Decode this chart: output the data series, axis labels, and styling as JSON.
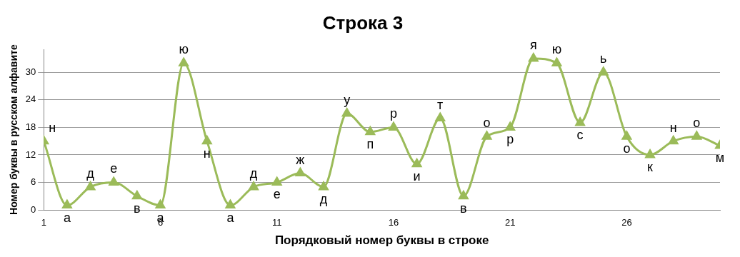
{
  "chart_data": {
    "type": "line",
    "title": "Строка 3",
    "xlabel": "Порядковый номер буквы в строке",
    "ylabel": "Номер буквы в русском алфавите",
    "x": [
      1,
      2,
      3,
      4,
      5,
      6,
      7,
      8,
      9,
      10,
      11,
      12,
      13,
      14,
      15,
      16,
      17,
      18,
      19,
      20,
      21,
      22,
      23,
      24,
      25,
      26,
      27,
      28,
      29,
      30
    ],
    "series": [
      {
        "color": "#9bbb59",
        "values": [
          15,
          1,
          5,
          6,
          3,
          1,
          32,
          15,
          1,
          5,
          6,
          8,
          5,
          21,
          17,
          18,
          10,
          20,
          3,
          16,
          18,
          33,
          32,
          19,
          30,
          16,
          12,
          15,
          16,
          14
        ],
        "value_labels": [
          "н",
          "а",
          "д",
          "е",
          "в",
          "а",
          "ю",
          "н",
          "а",
          "д",
          "е",
          "ж",
          "д",
          "у",
          "п",
          "р",
          "и",
          "т",
          "в",
          "о",
          "р",
          "я",
          "ю",
          "с",
          "ь",
          "о",
          "к",
          "н",
          "о",
          "м"
        ]
      }
    ],
    "xlim": [
      1,
      30
    ],
    "xticks": [
      1,
      6,
      11,
      16,
      21,
      26
    ],
    "ylim": [
      0,
      35
    ],
    "yticks": [
      0,
      6,
      12,
      18,
      24,
      30
    ],
    "grid": "y",
    "legend": false,
    "marker": "triangle",
    "line_style": "solid"
  }
}
